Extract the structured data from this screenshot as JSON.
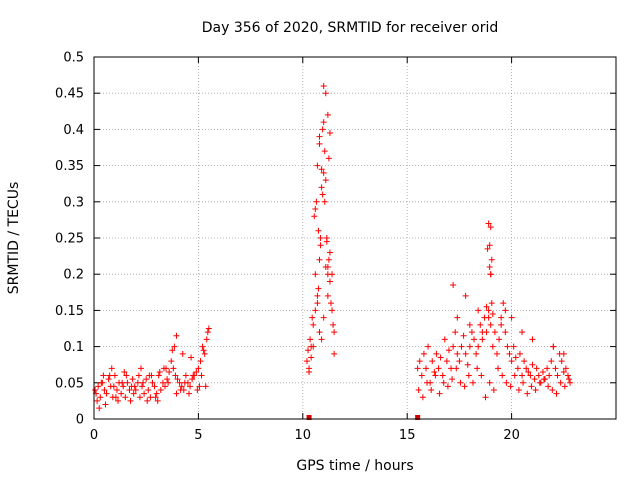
{
  "chart_data": {
    "type": "scatter",
    "title": "Day 356 of 2020, SRMTID for receiver orid",
    "xlabel": "GPS time / hours",
    "ylabel": "SRMTID / TECUs",
    "xlim": [
      0,
      25
    ],
    "ylim": [
      0,
      0.5
    ],
    "xticks": [
      "0",
      "5",
      "10",
      "15",
      "20"
    ],
    "yticks": [
      "0",
      "0.05",
      "0.1",
      "0.15",
      "0.2",
      "0.25",
      "0.3",
      "0.35",
      "0.4",
      "0.45",
      "0.5"
    ],
    "grid": true,
    "marker": "+",
    "color": "#ff0000",
    "axis_markers": [
      10.3,
      15.5
    ],
    "series": [
      {
        "name": "SRMTID",
        "x": [
          0.05,
          0.1,
          0.2,
          0.3,
          0.4,
          0.5,
          0.6,
          0.7,
          0.8,
          0.9,
          1.0,
          1.1,
          1.2,
          1.3,
          1.4,
          1.5,
          1.6,
          1.7,
          1.8,
          1.9,
          2.0,
          2.1,
          2.2,
          2.3,
          2.4,
          2.5,
          2.6,
          2.7,
          2.8,
          2.9,
          3.0,
          3.1,
          3.2,
          3.3,
          3.4,
          3.5,
          3.6,
          3.7,
          3.8,
          3.9,
          4.0,
          4.1,
          4.2,
          4.3,
          4.4,
          4.5,
          4.6,
          4.7,
          4.8,
          4.9,
          5.0,
          5.1,
          5.2,
          5.3,
          5.4,
          0.15,
          0.35,
          0.55,
          0.75,
          0.95,
          1.15,
          1.35,
          1.55,
          1.75,
          1.95,
          2.15,
          2.35,
          2.55,
          2.75,
          2.95,
          3.15,
          3.35,
          3.55,
          3.75,
          3.95,
          4.15,
          4.35,
          4.55,
          4.75,
          4.95,
          5.15,
          5.35,
          0.25,
          0.45,
          0.85,
          1.05,
          1.45,
          1.85,
          2.25,
          2.65,
          3.05,
          3.45,
          3.85,
          3.95,
          4.25,
          4.65,
          5.05,
          5.25,
          5.45,
          5.5,
          10.2,
          10.25,
          10.3,
          10.35,
          10.4,
          10.45,
          10.5,
          10.55,
          10.6,
          10.65,
          10.7,
          10.75,
          10.8,
          10.85,
          10.9,
          10.95,
          11.0,
          11.05,
          11.1,
          11.15,
          11.2,
          11.25,
          11.3,
          11.35,
          11.4,
          11.45,
          11.5,
          10.3,
          10.4,
          10.5,
          10.6,
          10.7,
          10.8,
          10.9,
          11.0,
          11.1,
          11.2,
          11.3,
          11.4,
          11.5,
          10.6,
          10.7,
          10.8,
          10.9,
          11.0,
          11.1,
          11.2,
          11.3,
          10.75,
          10.85,
          10.95,
          11.05,
          11.15,
          11.25,
          10.8,
          11.0,
          11.2,
          15.5,
          15.6,
          15.7,
          15.8,
          15.9,
          16.0,
          16.1,
          16.2,
          16.3,
          16.4,
          16.5,
          16.6,
          16.7,
          16.8,
          16.9,
          17.0,
          17.1,
          17.2,
          17.3,
          17.4,
          17.5,
          17.6,
          17.7,
          17.8,
          17.9,
          18.0,
          18.1,
          18.2,
          18.3,
          18.4,
          18.5,
          18.6,
          18.7,
          18.8,
          18.9,
          19.0,
          19.1,
          19.2,
          19.3,
          19.4,
          19.5,
          19.6,
          19.7,
          19.8,
          19.9,
          20.0,
          20.1,
          20.2,
          20.3,
          20.4,
          20.5,
          20.6,
          20.7,
          20.8,
          20.9,
          21.0,
          21.1,
          21.2,
          21.3,
          21.4,
          21.5,
          21.6,
          21.7,
          21.8,
          21.9,
          22.0,
          22.1,
          22.2,
          22.3,
          22.4,
          22.5,
          22.6,
          22.7,
          22.8,
          15.55,
          15.75,
          15.95,
          16.15,
          16.35,
          16.55,
          16.75,
          16.95,
          17.15,
          17.35,
          17.55,
          17.75,
          17.95,
          18.15,
          18.35,
          18.55,
          18.75,
          18.95,
          19.15,
          19.35,
          19.55,
          19.75,
          19.95,
          20.15,
          20.35,
          20.55,
          20.75,
          20.95,
          21.15,
          21.35,
          21.55,
          21.75,
          21.95,
          22.15,
          22.35,
          22.55,
          22.75,
          17.2,
          17.4,
          17.8,
          18.0,
          18.4,
          18.6,
          18.8,
          18.9,
          19.0,
          19.05,
          19.1,
          19.5,
          19.7,
          20.0,
          20.5,
          21.0,
          22.0,
          22.5,
          18.85,
          18.9,
          18.95,
          19.0,
          19.05,
          18.95,
          19.0
        ],
        "y": [
          0.04,
          0.035,
          0.045,
          0.03,
          0.05,
          0.04,
          0.035,
          0.055,
          0.045,
          0.03,
          0.06,
          0.04,
          0.05,
          0.035,
          0.045,
          0.03,
          0.05,
          0.04,
          0.045,
          0.035,
          0.04,
          0.05,
          0.03,
          0.045,
          0.035,
          0.055,
          0.04,
          0.03,
          0.05,
          0.045,
          0.035,
          0.06,
          0.04,
          0.05,
          0.045,
          0.055,
          0.065,
          0.08,
          0.07,
          0.06,
          0.055,
          0.05,
          0.045,
          0.04,
          0.06,
          0.05,
          0.045,
          0.055,
          0.06,
          0.065,
          0.07,
          0.08,
          0.1,
          0.09,
          0.11,
          0.025,
          0.05,
          0.02,
          0.06,
          0.045,
          0.025,
          0.05,
          0.06,
          0.025,
          0.045,
          0.06,
          0.05,
          0.025,
          0.06,
          0.03,
          0.065,
          0.07,
          0.05,
          0.095,
          0.035,
          0.04,
          0.05,
          0.035,
          0.06,
          0.04,
          0.06,
          0.045,
          0.015,
          0.06,
          0.07,
          0.03,
          0.065,
          0.055,
          0.07,
          0.06,
          0.025,
          0.07,
          0.1,
          0.115,
          0.09,
          0.085,
          0.045,
          0.095,
          0.12,
          0.125,
          0.08,
          0.095,
          0.07,
          0.11,
          0.1,
          0.14,
          0.13,
          0.28,
          0.29,
          0.3,
          0.16,
          0.18,
          0.22,
          0.24,
          0.32,
          0.4,
          0.41,
          0.37,
          0.33,
          0.25,
          0.2,
          0.22,
          0.19,
          0.16,
          0.15,
          0.13,
          0.09,
          0.065,
          0.085,
          0.1,
          0.15,
          0.17,
          0.12,
          0.11,
          0.14,
          0.21,
          0.17,
          0.23,
          0.2,
          0.12,
          0.2,
          0.35,
          0.39,
          0.345,
          0.46,
          0.45,
          0.42,
          0.395,
          0.26,
          0.25,
          0.31,
          0.3,
          0.245,
          0.36,
          0.38,
          0.34,
          0.21,
          0.07,
          0.08,
          0.06,
          0.09,
          0.07,
          0.1,
          0.05,
          0.08,
          0.065,
          0.09,
          0.07,
          0.085,
          0.06,
          0.11,
          0.08,
          0.095,
          0.07,
          0.1,
          0.12,
          0.09,
          0.08,
          0.1,
          0.115,
          0.09,
          0.075,
          0.1,
          0.12,
          0.11,
          0.09,
          0.1,
          0.13,
          0.11,
          0.14,
          0.12,
          0.15,
          0.13,
          0.1,
          0.12,
          0.09,
          0.11,
          0.14,
          0.16,
          0.12,
          0.1,
          0.09,
          0.08,
          0.1,
          0.085,
          0.07,
          0.09,
          0.06,
          0.08,
          0.07,
          0.065,
          0.06,
          0.075,
          0.055,
          0.07,
          0.06,
          0.05,
          0.065,
          0.055,
          0.07,
          0.06,
          0.08,
          0.1,
          0.07,
          0.06,
          0.09,
          0.08,
          0.065,
          0.07,
          0.06,
          0.05,
          0.04,
          0.03,
          0.05,
          0.04,
          0.06,
          0.035,
          0.05,
          0.045,
          0.055,
          0.07,
          0.05,
          0.045,
          0.06,
          0.05,
          0.07,
          0.06,
          0.03,
          0.05,
          0.04,
          0.07,
          0.06,
          0.05,
          0.045,
          0.06,
          0.04,
          0.05,
          0.035,
          0.045,
          0.04,
          0.05,
          0.055,
          0.045,
          0.04,
          0.035,
          0.05,
          0.045,
          0.055,
          0.185,
          0.14,
          0.17,
          0.13,
          0.15,
          0.12,
          0.155,
          0.14,
          0.2,
          0.16,
          0.145,
          0.13,
          0.15,
          0.14,
          0.12,
          0.11,
          0.1,
          0.09,
          0.235,
          0.27,
          0.24,
          0.265,
          0.22,
          0.21,
          0.2
        ]
      }
    ]
  }
}
